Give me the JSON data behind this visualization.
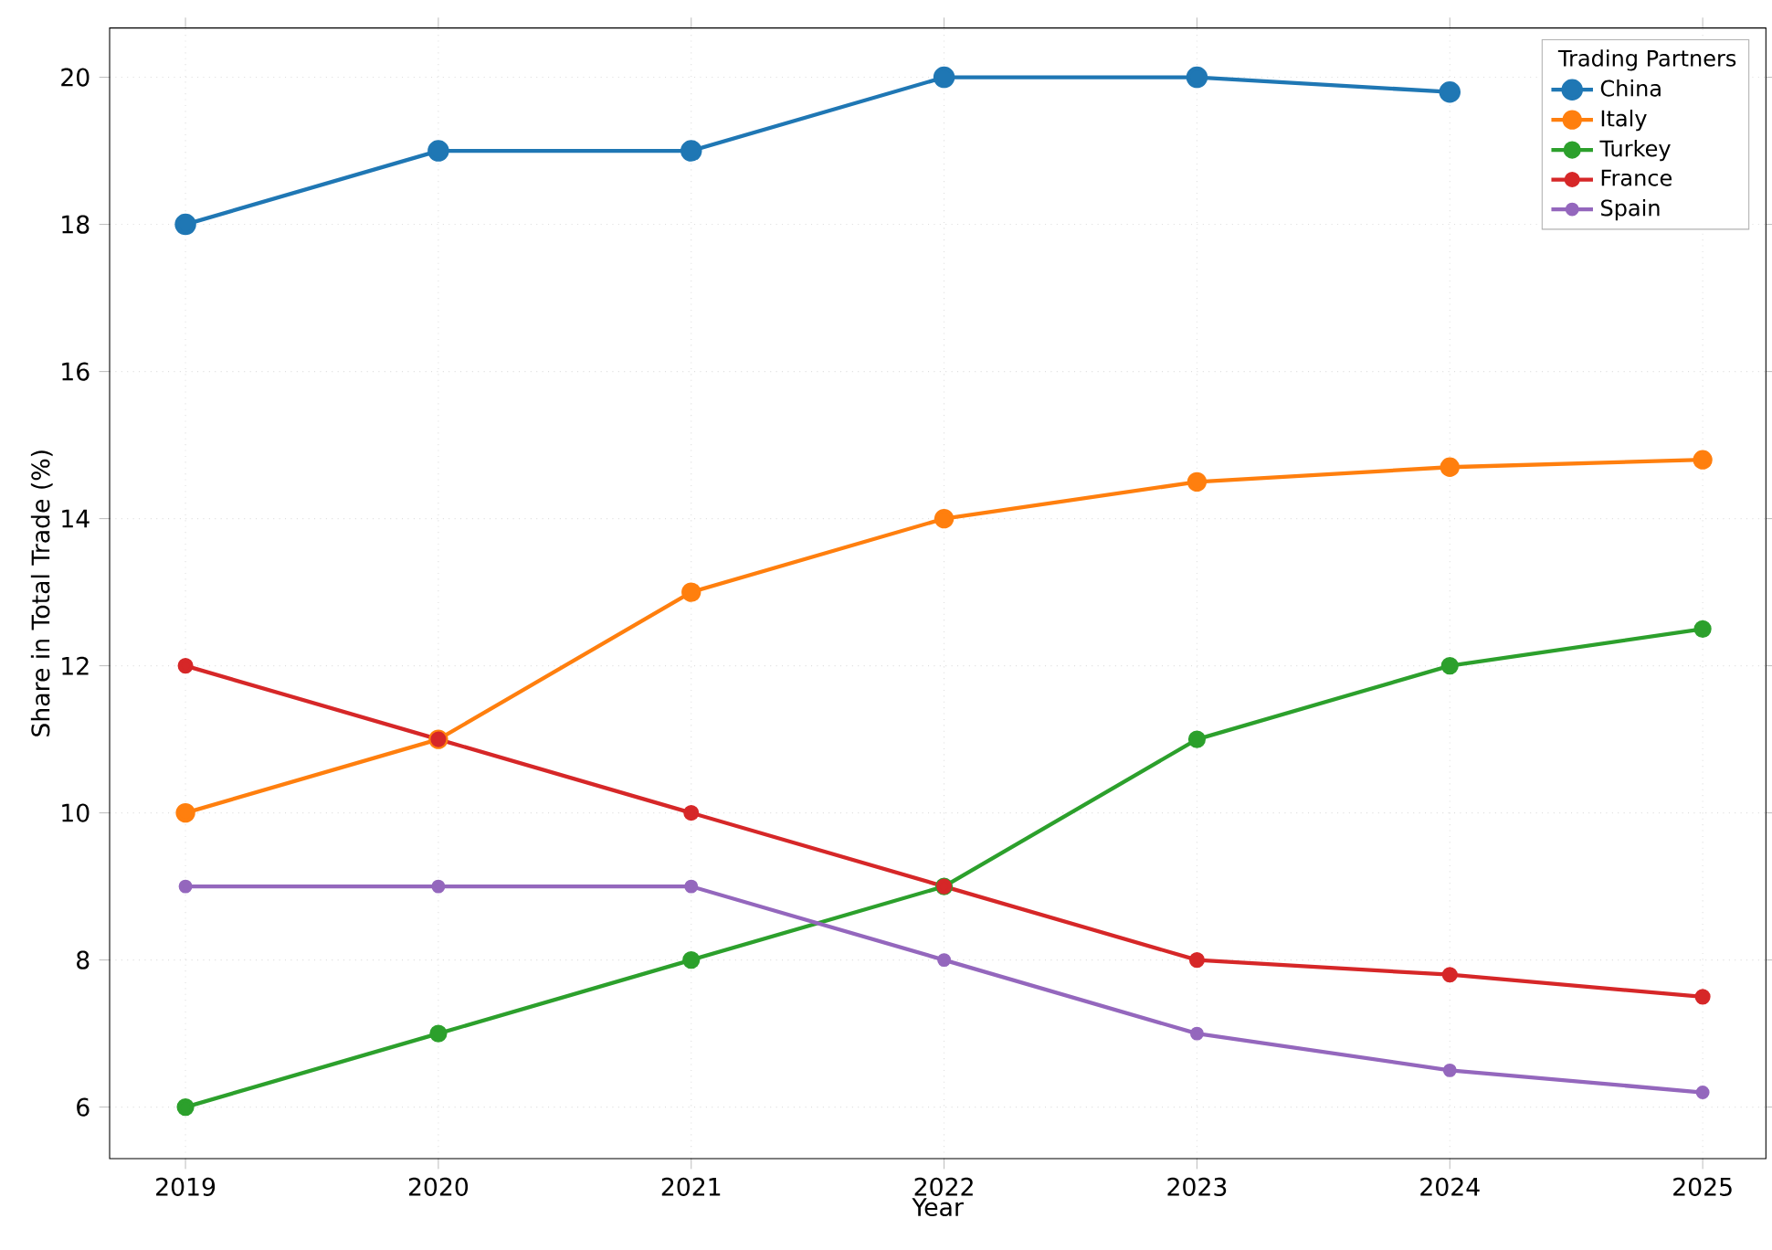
{
  "chart_data": {
    "type": "line",
    "xlabel": "Year",
    "ylabel": "Share in Total Trade (%)",
    "legend_title": "Trading Partners",
    "x": [
      2019,
      2020,
      2021,
      2022,
      2023,
      2024,
      2025
    ],
    "series": [
      {
        "name": "China",
        "color": "#1f77b4",
        "values": [
          18,
          19,
          19,
          20,
          20,
          19.8,
          null
        ]
      },
      {
        "name": "Italy",
        "color": "#ff7f0e",
        "values": [
          10,
          11,
          13,
          14,
          14.5,
          14.7,
          14.8
        ]
      },
      {
        "name": "Turkey",
        "color": "#2ca02c",
        "values": [
          6,
          7,
          8,
          9,
          11,
          12,
          12.5
        ]
      },
      {
        "name": "France",
        "color": "#d62728",
        "values": [
          12,
          11,
          10,
          9,
          8,
          7.8,
          7.5
        ]
      },
      {
        "name": "Spain",
        "color": "#9467bd",
        "values": [
          9,
          9,
          9,
          8,
          7,
          6.5,
          6.2
        ]
      }
    ],
    "xlim": [
      2018.7,
      2025.25
    ],
    "xticks": [
      2019,
      2020,
      2021,
      2022,
      2023,
      2024,
      2025
    ],
    "ylim": [
      5.3,
      20.67
    ],
    "yticks": [
      6,
      8,
      10,
      12,
      14,
      16,
      18,
      20
    ],
    "grid": true,
    "legend": "top right",
    "marker": "circle",
    "line_style": "solid"
  }
}
